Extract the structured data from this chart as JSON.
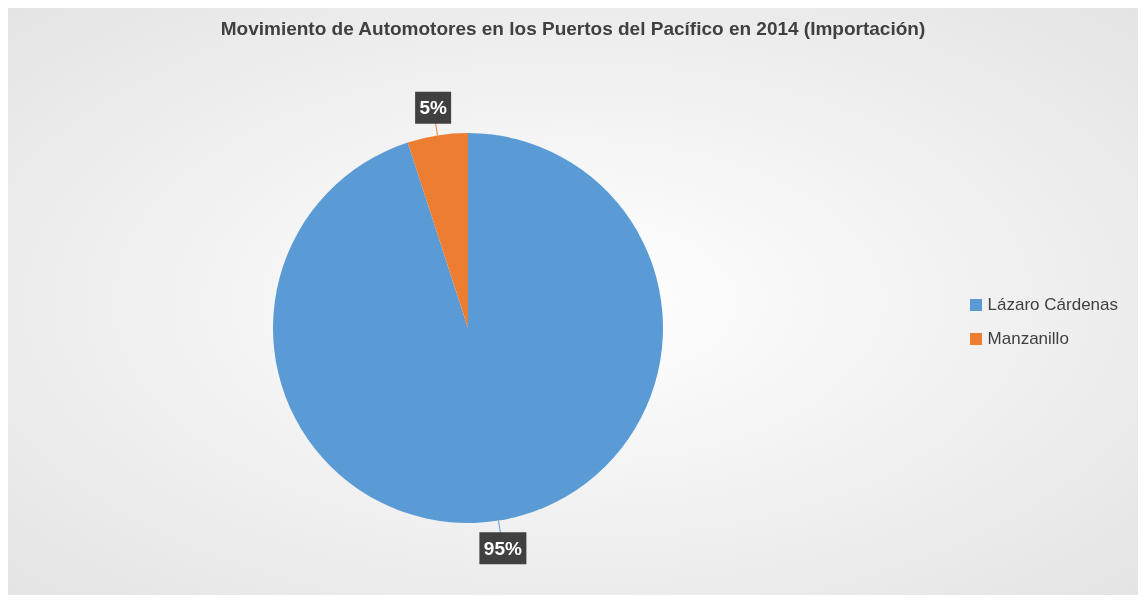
{
  "chart_data": {
    "type": "pie",
    "title": "Movimiento de Automotores en los Puertos del Pacífico en 2014 (Importación)",
    "categories": [
      "Lázaro Cárdenas",
      "Manzanillo"
    ],
    "values": [
      95,
      5
    ],
    "colors": [
      "#5b9bd5",
      "#ed7d31"
    ],
    "value_labels": [
      "95%",
      "5%"
    ],
    "legend": "right"
  }
}
